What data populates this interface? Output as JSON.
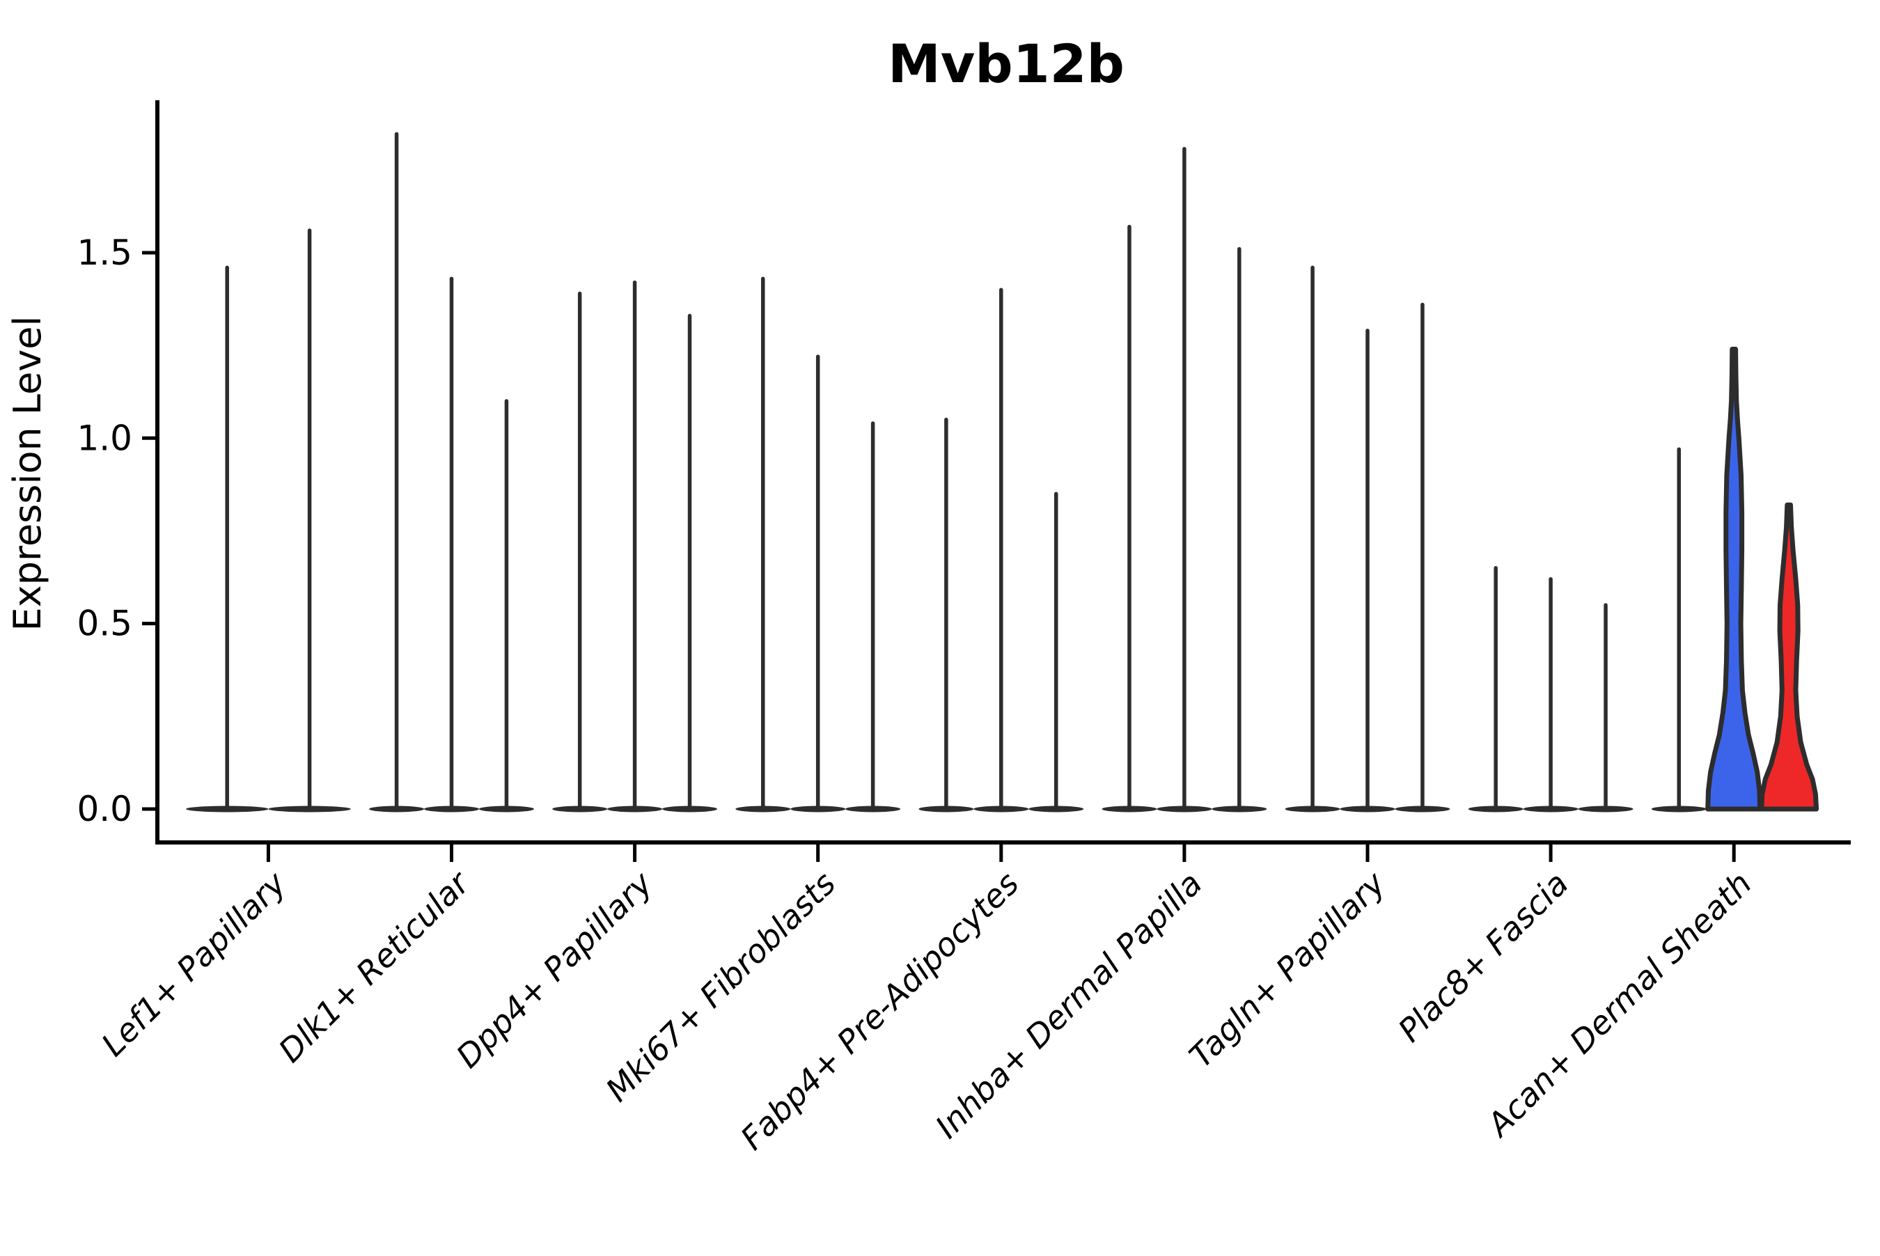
{
  "figure": {
    "title": "Mvb12b",
    "background_color": "#ffffff"
  },
  "chart_data": {
    "type": "violin",
    "title": "Mvb12b",
    "xlabel": "",
    "ylabel": "Expression Level",
    "yticks": [
      "0.0",
      "0.5",
      "1.0",
      "1.5"
    ],
    "ytick_values": [
      0.0,
      0.5,
      1.0,
      1.5
    ],
    "ylim": [
      -0.091,
      1.911
    ],
    "grid": "off",
    "legend_position": "none",
    "categories": [
      "Lef1+ Papillary",
      "Dlk1+ Reticular",
      "Dpp4+ Papillary",
      "Mki67+ Fibroblasts",
      "Fabp4+ Pre-Adipocytes",
      "Inhba+ Dermal Papilla",
      "Tagln+ Papillary",
      "Plac8+ Fascia",
      "Acan+ Dermal Sheath"
    ],
    "colors": {
      "violin_outline": "#2d2d2d",
      "violin_dark_fill": "#2d2d2d",
      "highlight_blue": "#3c64eb",
      "highlight_red": "#ee2828",
      "axis_color": "#000000"
    },
    "groups": [
      {
        "category": "Lef1+ Papillary",
        "violins": [
          {
            "max": 1.46,
            "style": "spike",
            "color": "dark"
          },
          {
            "max": 1.56,
            "style": "spike",
            "color": "dark"
          }
        ]
      },
      {
        "category": "Dlk1+ Reticular",
        "violins": [
          {
            "max": 1.82,
            "style": "spike",
            "color": "dark"
          },
          {
            "max": 1.43,
            "style": "spike",
            "color": "dark"
          },
          {
            "max": 1.1,
            "style": "spike",
            "color": "dark"
          }
        ]
      },
      {
        "category": "Dpp4+ Papillary",
        "violins": [
          {
            "max": 1.39,
            "style": "spike",
            "color": "dark"
          },
          {
            "max": 1.42,
            "style": "spike",
            "color": "dark"
          },
          {
            "max": 1.33,
            "style": "spike",
            "color": "dark"
          }
        ]
      },
      {
        "category": "Mki67+ Fibroblasts",
        "violins": [
          {
            "max": 1.43,
            "style": "spike",
            "color": "dark"
          },
          {
            "max": 1.22,
            "style": "spike",
            "color": "dark"
          },
          {
            "max": 1.04,
            "style": "spike",
            "color": "dark"
          }
        ]
      },
      {
        "category": "Fabp4+ Pre-Adipocytes",
        "violins": [
          {
            "max": 1.05,
            "style": "spike",
            "color": "dark"
          },
          {
            "max": 1.4,
            "style": "spike",
            "color": "dark"
          },
          {
            "max": 0.85,
            "style": "spike",
            "color": "dark"
          }
        ]
      },
      {
        "category": "Inhba+ Dermal Papilla",
        "violins": [
          {
            "max": 1.57,
            "style": "spike",
            "color": "dark"
          },
          {
            "max": 1.78,
            "style": "spike",
            "color": "dark"
          },
          {
            "max": 1.51,
            "style": "spike",
            "color": "dark"
          }
        ]
      },
      {
        "category": "Tagln+ Papillary",
        "violins": [
          {
            "max": 1.46,
            "style": "spike",
            "color": "dark"
          },
          {
            "max": 1.29,
            "style": "spike",
            "color": "dark"
          },
          {
            "max": 1.36,
            "style": "spike",
            "color": "dark"
          }
        ]
      },
      {
        "category": "Plac8+ Fascia",
        "violins": [
          {
            "max": 0.65,
            "style": "spike",
            "color": "dark"
          },
          {
            "max": 0.62,
            "style": "spike",
            "color": "dark"
          },
          {
            "max": 0.55,
            "style": "spike",
            "color": "dark"
          }
        ]
      },
      {
        "category": "Acan+ Dermal Sheath",
        "violins": [
          {
            "max": 0.97,
            "style": "spike",
            "color": "dark"
          },
          {
            "max": 1.24,
            "style": "body",
            "color": "blue",
            "profile": [
              [
                0,
                0.95
              ],
              [
                0.05,
                0.93
              ],
              [
                0.1,
                0.85
              ],
              [
                0.15,
                0.7
              ],
              [
                0.2,
                0.53
              ],
              [
                0.26,
                0.4
              ],
              [
                0.32,
                0.31
              ],
              [
                0.4,
                0.27
              ],
              [
                0.5,
                0.25
              ],
              [
                0.6,
                0.27
              ],
              [
                0.7,
                0.29
              ],
              [
                0.8,
                0.29
              ],
              [
                0.9,
                0.26
              ],
              [
                1.0,
                0.18
              ],
              [
                1.05,
                0.13
              ],
              [
                1.1,
                0.09
              ],
              [
                1.17,
                0.07
              ],
              [
                1.24,
                0.06
              ]
            ]
          },
          {
            "max": 0.82,
            "style": "body",
            "color": "red",
            "profile": [
              [
                0,
                1.0
              ],
              [
                0.04,
                0.97
              ],
              [
                0.08,
                0.86
              ],
              [
                0.12,
                0.65
              ],
              [
                0.18,
                0.43
              ],
              [
                0.25,
                0.3
              ],
              [
                0.32,
                0.25
              ],
              [
                0.4,
                0.28
              ],
              [
                0.48,
                0.33
              ],
              [
                0.55,
                0.32
              ],
              [
                0.62,
                0.25
              ],
              [
                0.7,
                0.15
              ],
              [
                0.76,
                0.09
              ],
              [
                0.82,
                0.06
              ]
            ]
          }
        ]
      }
    ]
  }
}
